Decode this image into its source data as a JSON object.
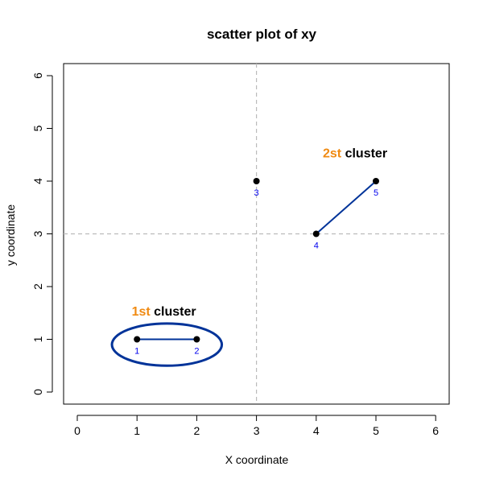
{
  "chart_data": {
    "type": "scatter",
    "title": "scatter plot of xy",
    "xlabel": "X coordinate",
    "ylabel": "y coordinate",
    "xlim": [
      0,
      6
    ],
    "ylim": [
      0,
      6
    ],
    "x_ticks": [
      0,
      1,
      2,
      3,
      4,
      5,
      6
    ],
    "y_ticks": [
      0,
      1,
      2,
      3,
      4,
      5,
      6
    ],
    "grid": false,
    "points": [
      {
        "x": 1,
        "y": 1,
        "label": "1"
      },
      {
        "x": 2,
        "y": 1,
        "label": "2"
      },
      {
        "x": 3,
        "y": 4,
        "label": "3"
      },
      {
        "x": 4,
        "y": 3,
        "label": "4"
      },
      {
        "x": 5,
        "y": 4,
        "label": "5"
      }
    ],
    "reference_lines": {
      "vertical_x": 3,
      "horizontal_y": 3
    },
    "segments": [
      {
        "from": 1,
        "to": 2
      },
      {
        "from": 4,
        "to": 5
      }
    ],
    "ellipse": {
      "center_x": 1.5,
      "center_y": 0.9,
      "radius_x": 0.92,
      "radius_y": 0.4
    },
    "annotations": [
      {
        "ordinal": "1st",
        "word": "cluster",
        "x": 1.45,
        "y": 1.45
      },
      {
        "ordinal": "2st",
        "word": "cluster",
        "x": 4.65,
        "y": 4.45
      }
    ],
    "colors": {
      "points": "#000000",
      "point_labels": "#0000ee",
      "segments": "#003399",
      "ellipse": "#003399",
      "reference_lines": "#bbbbbb",
      "ordinal": "#f08a12",
      "cluster_word": "#000000"
    }
  }
}
